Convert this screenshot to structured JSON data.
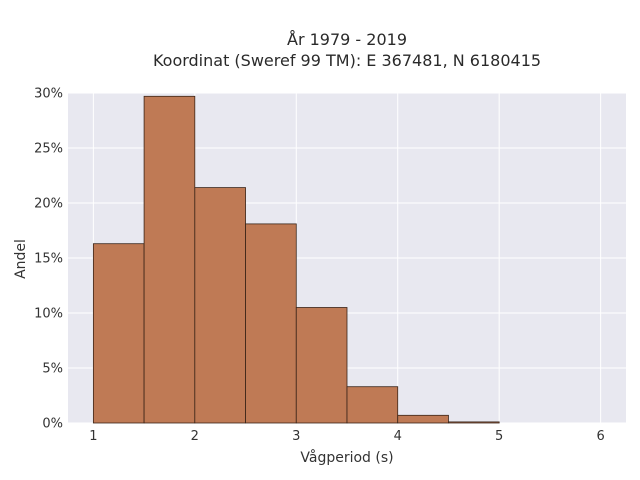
{
  "chart_data": {
    "type": "bar",
    "title_line1": "År 1979 - 2019",
    "title_line2": "Koordinat (Sweref 99 TM): E 367481, N 6180415",
    "xlabel": "Vågperiod (s)",
    "ylabel": "Andel",
    "xlim": [
      0.75,
      6.25
    ],
    "ylim": [
      0,
      0.3
    ],
    "xticks": [
      1,
      2,
      3,
      4,
      5,
      6
    ],
    "yticks": [
      0,
      0.05,
      0.1,
      0.15,
      0.2,
      0.25,
      0.3
    ],
    "ytick_labels": [
      "0%",
      "5%",
      "10%",
      "15%",
      "20%",
      "25%",
      "30%"
    ],
    "grid": true,
    "bar_color": "#bf7a55",
    "plot_bg": "#e8e8f0",
    "bins": [
      {
        "x0": 1.0,
        "x1": 1.5,
        "value": 0.163
      },
      {
        "x0": 1.5,
        "x1": 2.0,
        "value": 0.297
      },
      {
        "x0": 2.0,
        "x1": 2.5,
        "value": 0.214
      },
      {
        "x0": 2.5,
        "x1": 3.0,
        "value": 0.181
      },
      {
        "x0": 3.0,
        "x1": 3.5,
        "value": 0.105
      },
      {
        "x0": 3.5,
        "x1": 4.0,
        "value": 0.033
      },
      {
        "x0": 4.0,
        "x1": 4.5,
        "value": 0.007
      },
      {
        "x0": 4.5,
        "x1": 5.0,
        "value": 0.001
      }
    ]
  }
}
